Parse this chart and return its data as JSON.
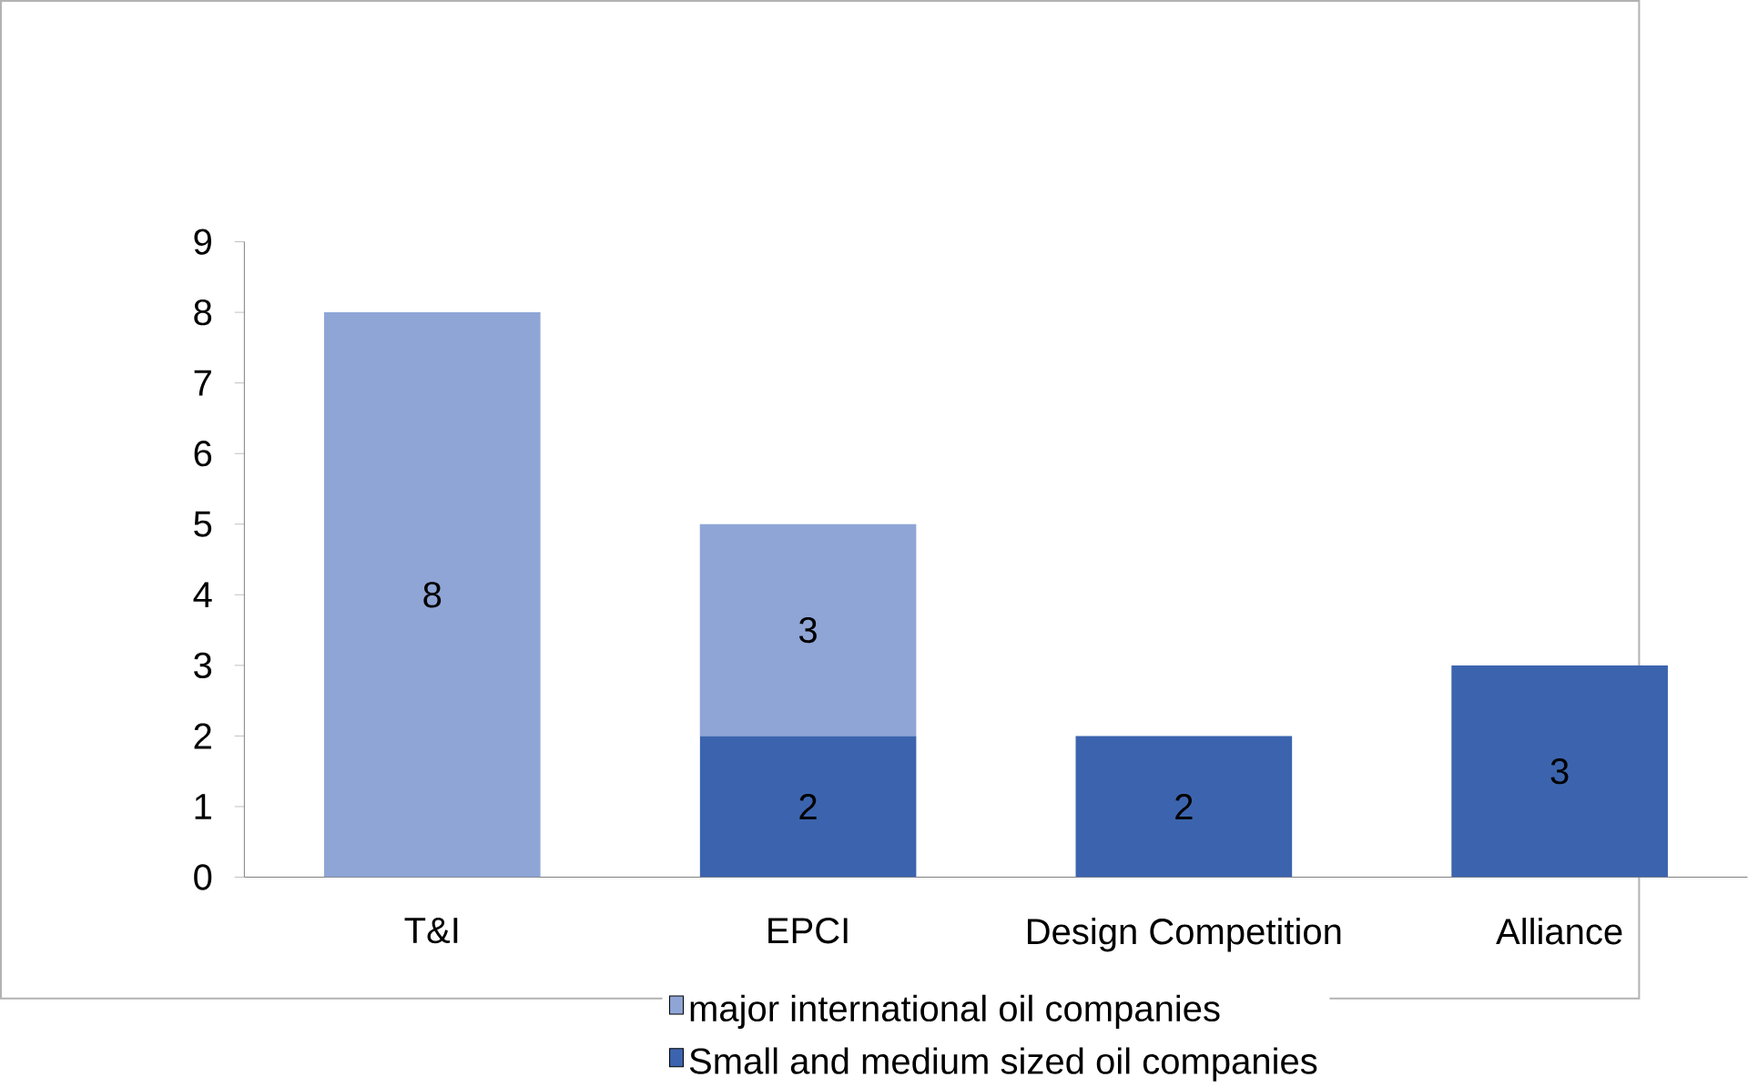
{
  "chart_data": {
    "type": "bar",
    "stacked": true,
    "categories": [
      "T&I",
      "EPCI",
      "Design Competition",
      "Alliance"
    ],
    "series": [
      {
        "name": "Small and medium sized oil companies",
        "color": "#3c64ae",
        "values": [
          0,
          2,
          2,
          3
        ],
        "value_labels": [
          null,
          "2",
          "2",
          "3"
        ]
      },
      {
        "name": "major international oil companies",
        "color": "#8fa5d6",
        "values": [
          8,
          3,
          0,
          0
        ],
        "value_labels": [
          "8",
          "3",
          null,
          null
        ]
      }
    ],
    "ylim": [
      0,
      9
    ],
    "yticks": [
      0,
      1,
      2,
      3,
      4,
      5,
      6,
      7,
      8,
      9
    ],
    "legend": "bottom",
    "grid": false
  }
}
